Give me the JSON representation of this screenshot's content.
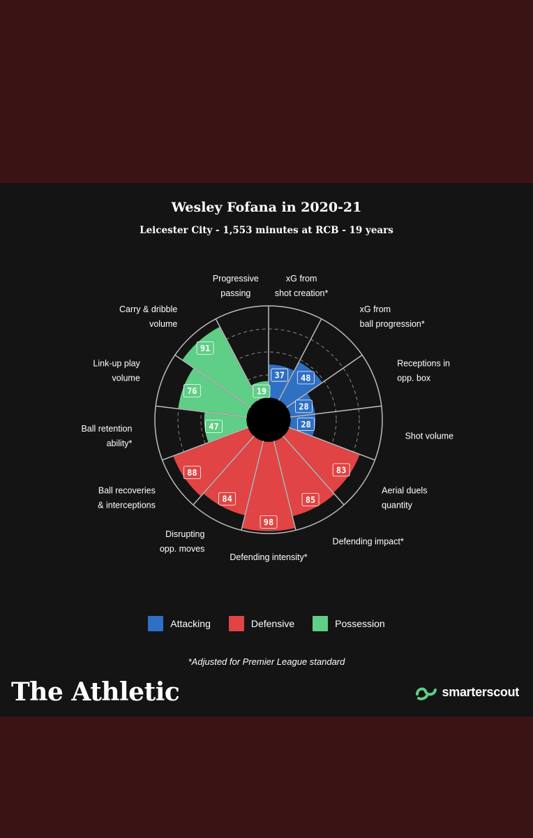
{
  "title": "Wesley Fofana in 2020-21",
  "subtitle": "Leicester City - 1,553 minutes at RCB - 19 years",
  "chart_data": {
    "type": "radar",
    "scale_max": 100,
    "categories": [
      {
        "label": [
          "xG from",
          "shot creation*"
        ],
        "value": 37,
        "group": "Attacking"
      },
      {
        "label": [
          "xG from",
          "ball progression*"
        ],
        "value": 48,
        "group": "Attacking"
      },
      {
        "label": [
          "Receptions in",
          "opp. box"
        ],
        "value": 28,
        "group": "Attacking"
      },
      {
        "label": [
          "Shot volume"
        ],
        "value": 28,
        "group": "Attacking"
      },
      {
        "label": [
          "Aerial duels",
          "quantity"
        ],
        "value": 83,
        "group": "Defensive"
      },
      {
        "label": [
          "Defending impact*"
        ],
        "value": 85,
        "group": "Defensive"
      },
      {
        "label": [
          "Defending intensity*"
        ],
        "value": 98,
        "group": "Defensive"
      },
      {
        "label": [
          "Disrupting",
          "opp. moves"
        ],
        "value": 84,
        "group": "Defensive"
      },
      {
        "label": [
          "Ball recoveries",
          "& interceptions"
        ],
        "value": 88,
        "group": "Defensive"
      },
      {
        "label": [
          "Ball retention",
          "ability*"
        ],
        "value": 47,
        "group": "Possession"
      },
      {
        "label": [
          "Link-up play",
          "volume"
        ],
        "value": 76,
        "group": "Possession"
      },
      {
        "label": [
          "Carry & dribble",
          "volume"
        ],
        "value": 91,
        "group": "Possession"
      },
      {
        "label": [
          "Progressive",
          "passing"
        ],
        "value": 19,
        "group": "Possession"
      }
    ],
    "legend": [
      {
        "name": "Attacking",
        "color": "#2f6fc4"
      },
      {
        "name": "Defensive",
        "color": "#e04444"
      },
      {
        "name": "Possession",
        "color": "#5fce86"
      }
    ],
    "legend_position": "bottom"
  },
  "footnote": "*Adjusted for Premier League standard",
  "brand": "The Athletic",
  "logo_text": "smarterscout"
}
